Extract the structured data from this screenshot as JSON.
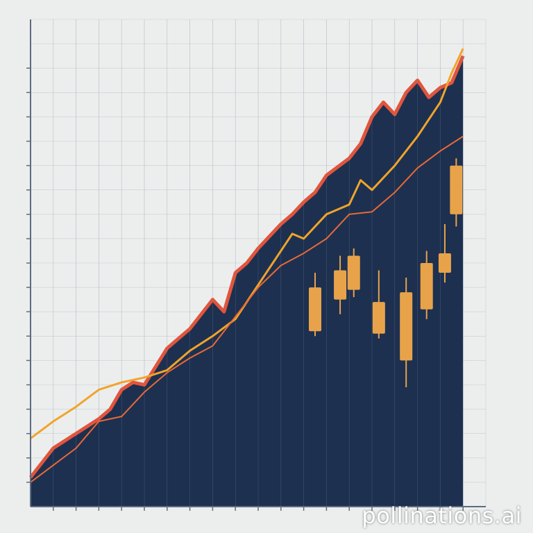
{
  "watermark": "pollinations.ai",
  "colors": {
    "background": "#eceeed",
    "area_fill": "#1d3050",
    "area_edge": "#e0553d",
    "upper_line": "#f1a42a",
    "lower_line": "#e86a36",
    "candle_teal": "#3aa7bd",
    "candle_amber": "#e8a34a",
    "axis": "#5d6b80",
    "grid": "#b9c0c9"
  },
  "chart_data": {
    "type": "area",
    "title": "",
    "xlabel": "",
    "ylabel": "",
    "xlim": [
      0,
      20
    ],
    "ylim": [
      0,
      20
    ],
    "grid": true,
    "legend": "none",
    "tick_labels": "illegible",
    "series": [
      {
        "kind": "area",
        "x": [
          0,
          1,
          2,
          3,
          3.5,
          4,
          4.5,
          5,
          6,
          7,
          8,
          8.5,
          9,
          9.5,
          10,
          11,
          11.5,
          12,
          12.5,
          13,
          14,
          14.5,
          15,
          15.5,
          16,
          16.5,
          17,
          17.5,
          18,
          18.5,
          19
        ],
        "y": [
          1.2,
          2.4,
          3.0,
          3.6,
          4.0,
          4.8,
          5.1,
          5.0,
          6.5,
          7.3,
          8.5,
          8.0,
          9.6,
          10.0,
          10.6,
          11.6,
          12.0,
          12.5,
          12.9,
          13.6,
          14.3,
          14.9,
          16.0,
          16.6,
          16.1,
          17.0,
          17.5,
          16.8,
          17.2,
          17.4,
          18.5
        ]
      },
      {
        "kind": "line",
        "x": [
          0,
          1,
          2,
          3,
          4,
          5,
          6,
          7,
          8,
          9,
          10,
          11,
          11.5,
          12,
          13,
          14,
          14.5,
          15,
          16,
          17,
          18,
          18.5,
          19
        ],
        "y": [
          2.8,
          3.5,
          4.1,
          4.8,
          5.1,
          5.3,
          5.6,
          6.4,
          7.0,
          7.7,
          9.1,
          10.5,
          11.2,
          11.0,
          12.0,
          12.4,
          13.4,
          13.0,
          14.0,
          15.2,
          16.6,
          17.8,
          18.8
        ]
      },
      {
        "kind": "line",
        "x": [
          0,
          1,
          2,
          3,
          4,
          5,
          6,
          7,
          8,
          9,
          10,
          11,
          12,
          13,
          14,
          15,
          16,
          17,
          18,
          19
        ],
        "y": [
          1.0,
          1.7,
          2.4,
          3.5,
          3.7,
          4.7,
          5.5,
          6.1,
          6.6,
          7.8,
          9.0,
          9.9,
          10.4,
          11.0,
          12.0,
          12.1,
          12.9,
          13.9,
          14.6,
          15.2
        ]
      }
    ],
    "candles": [
      {
        "x": 12.5,
        "low": 7.0,
        "high": 9.6,
        "open": 7.2,
        "close": 9.0
      },
      {
        "x": 13.6,
        "low": 7.9,
        "high": 10.3,
        "open": 8.5,
        "close": 9.7
      },
      {
        "x": 14.2,
        "low": 8.6,
        "high": 10.6,
        "open": 8.9,
        "close": 10.3
      },
      {
        "x": 15.3,
        "low": 6.9,
        "high": 9.7,
        "open": 7.1,
        "close": 8.4
      },
      {
        "x": 16.5,
        "low": 4.9,
        "high": 9.4,
        "open": 6.0,
        "close": 8.8
      },
      {
        "x": 17.4,
        "low": 7.7,
        "high": 10.5,
        "open": 8.1,
        "close": 10.0
      },
      {
        "x": 18.2,
        "low": 9.2,
        "high": 11.6,
        "open": 9.6,
        "close": 10.4
      },
      {
        "x": 18.7,
        "low": 11.5,
        "high": 14.3,
        "open": 12.0,
        "close": 14.0
      }
    ]
  }
}
